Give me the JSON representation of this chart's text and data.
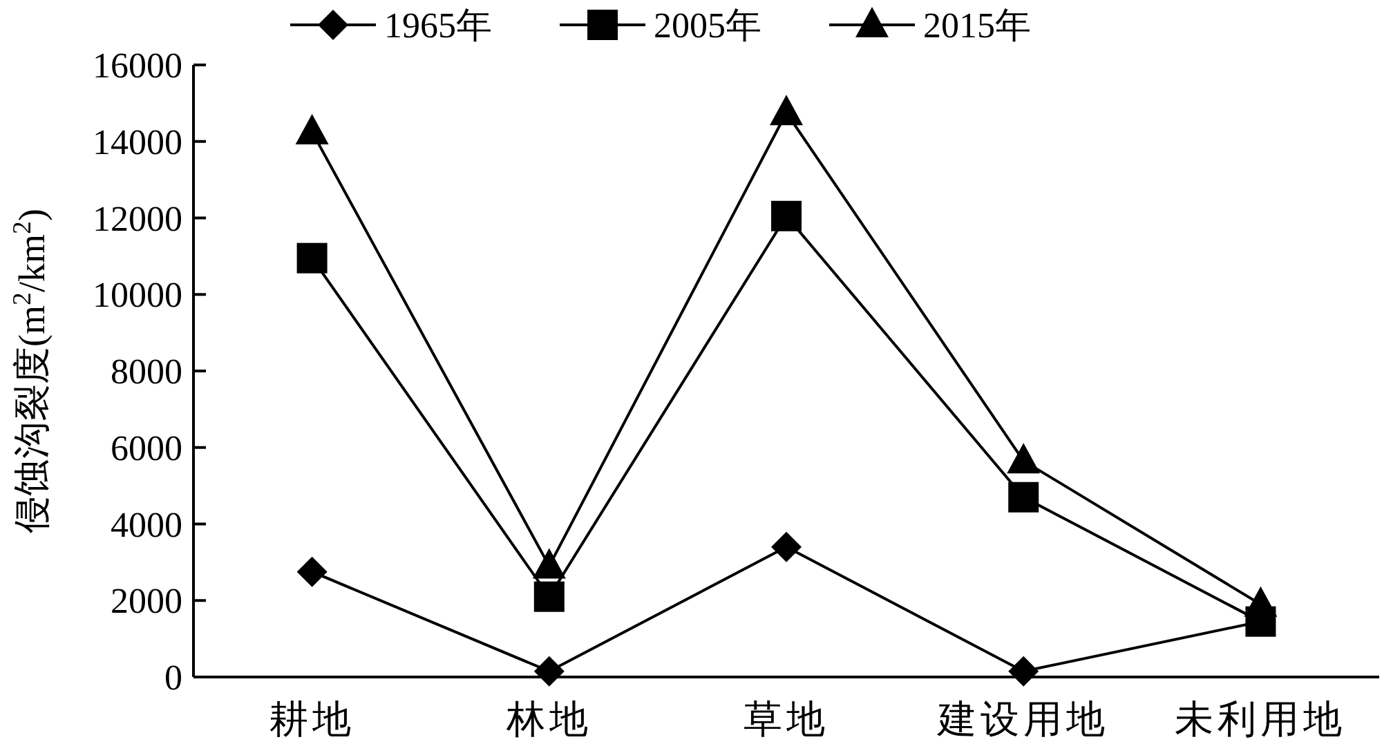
{
  "chart_data": {
    "type": "line",
    "ylabel": "侵蚀沟裂度(m$^{2}$/km$^{2}$)",
    "categories": [
      "耕地",
      "林地",
      "草地",
      "建设用地",
      "未利用地"
    ],
    "series": [
      {
        "name": "1965年",
        "color": "#000000",
        "marker": "diamond",
        "values": [
          2750,
          150,
          3400,
          150,
          1450
        ]
      },
      {
        "name": "2005年",
        "color": "#000000",
        "marker": "square",
        "values": [
          10950,
          2100,
          12050,
          4700,
          1450
        ]
      },
      {
        "name": "2015年",
        "color": "#000000",
        "marker": "triangle",
        "values": [
          14250,
          2900,
          14750,
          5650,
          1900
        ]
      }
    ],
    "ylim": [
      0,
      16000
    ],
    "yticks": [
      0,
      2000,
      4000,
      6000,
      8000,
      10000,
      12000,
      14000,
      16000
    ],
    "legend": "top",
    "grid": false,
    "line_style": "solid"
  }
}
